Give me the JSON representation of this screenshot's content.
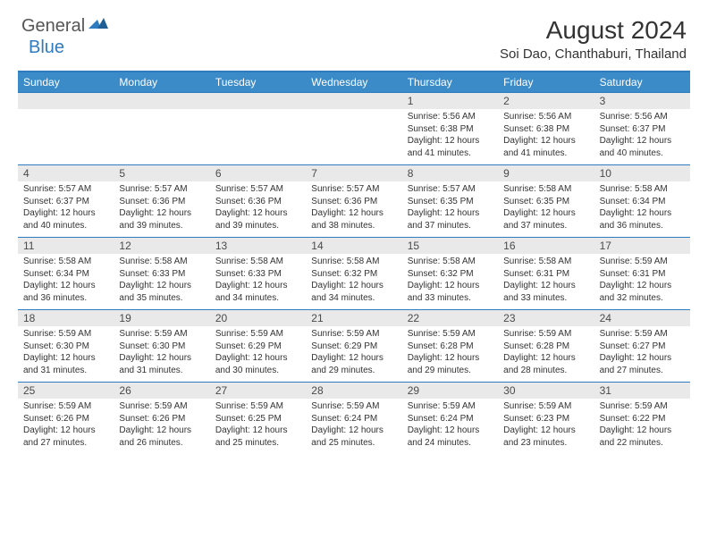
{
  "logo": {
    "text1": "General",
    "text2": "Blue"
  },
  "title": "August 2024",
  "location": "Soi Dao, Chanthaburi, Thailand",
  "colors": {
    "header_bg": "#3b8bc9",
    "border": "#2f7bbf",
    "band": "#e9e9e9",
    "text": "#333333",
    "logo_gray": "#555555",
    "logo_blue": "#2f7bbf"
  },
  "day_headers": [
    "Sunday",
    "Monday",
    "Tuesday",
    "Wednesday",
    "Thursday",
    "Friday",
    "Saturday"
  ],
  "weeks": [
    [
      null,
      null,
      null,
      null,
      {
        "n": "1",
        "sr": "5:56 AM",
        "ss": "6:38 PM",
        "dl": "12 hours and 41 minutes."
      },
      {
        "n": "2",
        "sr": "5:56 AM",
        "ss": "6:38 PM",
        "dl": "12 hours and 41 minutes."
      },
      {
        "n": "3",
        "sr": "5:56 AM",
        "ss": "6:37 PM",
        "dl": "12 hours and 40 minutes."
      }
    ],
    [
      {
        "n": "4",
        "sr": "5:57 AM",
        "ss": "6:37 PM",
        "dl": "12 hours and 40 minutes."
      },
      {
        "n": "5",
        "sr": "5:57 AM",
        "ss": "6:36 PM",
        "dl": "12 hours and 39 minutes."
      },
      {
        "n": "6",
        "sr": "5:57 AM",
        "ss": "6:36 PM",
        "dl": "12 hours and 39 minutes."
      },
      {
        "n": "7",
        "sr": "5:57 AM",
        "ss": "6:36 PM",
        "dl": "12 hours and 38 minutes."
      },
      {
        "n": "8",
        "sr": "5:57 AM",
        "ss": "6:35 PM",
        "dl": "12 hours and 37 minutes."
      },
      {
        "n": "9",
        "sr": "5:58 AM",
        "ss": "6:35 PM",
        "dl": "12 hours and 37 minutes."
      },
      {
        "n": "10",
        "sr": "5:58 AM",
        "ss": "6:34 PM",
        "dl": "12 hours and 36 minutes."
      }
    ],
    [
      {
        "n": "11",
        "sr": "5:58 AM",
        "ss": "6:34 PM",
        "dl": "12 hours and 36 minutes."
      },
      {
        "n": "12",
        "sr": "5:58 AM",
        "ss": "6:33 PM",
        "dl": "12 hours and 35 minutes."
      },
      {
        "n": "13",
        "sr": "5:58 AM",
        "ss": "6:33 PM",
        "dl": "12 hours and 34 minutes."
      },
      {
        "n": "14",
        "sr": "5:58 AM",
        "ss": "6:32 PM",
        "dl": "12 hours and 34 minutes."
      },
      {
        "n": "15",
        "sr": "5:58 AM",
        "ss": "6:32 PM",
        "dl": "12 hours and 33 minutes."
      },
      {
        "n": "16",
        "sr": "5:58 AM",
        "ss": "6:31 PM",
        "dl": "12 hours and 33 minutes."
      },
      {
        "n": "17",
        "sr": "5:59 AM",
        "ss": "6:31 PM",
        "dl": "12 hours and 32 minutes."
      }
    ],
    [
      {
        "n": "18",
        "sr": "5:59 AM",
        "ss": "6:30 PM",
        "dl": "12 hours and 31 minutes."
      },
      {
        "n": "19",
        "sr": "5:59 AM",
        "ss": "6:30 PM",
        "dl": "12 hours and 31 minutes."
      },
      {
        "n": "20",
        "sr": "5:59 AM",
        "ss": "6:29 PM",
        "dl": "12 hours and 30 minutes."
      },
      {
        "n": "21",
        "sr": "5:59 AM",
        "ss": "6:29 PM",
        "dl": "12 hours and 29 minutes."
      },
      {
        "n": "22",
        "sr": "5:59 AM",
        "ss": "6:28 PM",
        "dl": "12 hours and 29 minutes."
      },
      {
        "n": "23",
        "sr": "5:59 AM",
        "ss": "6:28 PM",
        "dl": "12 hours and 28 minutes."
      },
      {
        "n": "24",
        "sr": "5:59 AM",
        "ss": "6:27 PM",
        "dl": "12 hours and 27 minutes."
      }
    ],
    [
      {
        "n": "25",
        "sr": "5:59 AM",
        "ss": "6:26 PM",
        "dl": "12 hours and 27 minutes."
      },
      {
        "n": "26",
        "sr": "5:59 AM",
        "ss": "6:26 PM",
        "dl": "12 hours and 26 minutes."
      },
      {
        "n": "27",
        "sr": "5:59 AM",
        "ss": "6:25 PM",
        "dl": "12 hours and 25 minutes."
      },
      {
        "n": "28",
        "sr": "5:59 AM",
        "ss": "6:24 PM",
        "dl": "12 hours and 25 minutes."
      },
      {
        "n": "29",
        "sr": "5:59 AM",
        "ss": "6:24 PM",
        "dl": "12 hours and 24 minutes."
      },
      {
        "n": "30",
        "sr": "5:59 AM",
        "ss": "6:23 PM",
        "dl": "12 hours and 23 minutes."
      },
      {
        "n": "31",
        "sr": "5:59 AM",
        "ss": "6:22 PM",
        "dl": "12 hours and 22 minutes."
      }
    ]
  ],
  "labels": {
    "sunrise": "Sunrise:",
    "sunset": "Sunset:",
    "daylight": "Daylight:"
  }
}
